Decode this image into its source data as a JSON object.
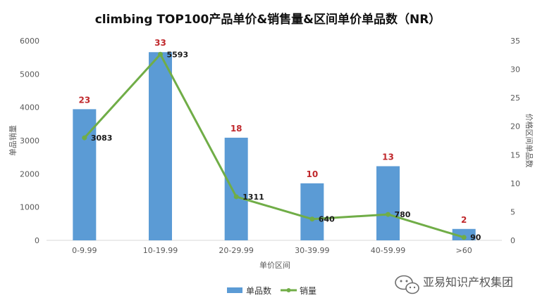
{
  "chart_data": {
    "type": "bar",
    "title": "climbing TOP100产品单价&销售量&区间单价单品数（NR）",
    "categories": [
      "0-9.99",
      "10-19.99",
      "20-29.99",
      "30-39.99",
      "40-59.99",
      ">60"
    ],
    "series": [
      {
        "name": "单品数",
        "type": "bar",
        "axis": "right",
        "values": [
          23,
          33,
          18,
          10,
          13,
          2
        ],
        "color": "#5b9bd5"
      },
      {
        "name": "销量",
        "type": "line",
        "axis": "left",
        "values": [
          3083,
          5593,
          1311,
          640,
          780,
          90
        ],
        "color": "#70ad47"
      }
    ],
    "xlabel": "单价区间",
    "ylabel": "单品销量",
    "y2label": "价格区间单品数",
    "ylim": [
      0,
      6000
    ],
    "y2lim": [
      0,
      35
    ],
    "yticks": [
      "0",
      "1000",
      "2000",
      "3000",
      "4000",
      "5000",
      "6000"
    ],
    "y2ticks": [
      "0",
      "5",
      "10",
      "15",
      "20",
      "25",
      "30",
      "35"
    ],
    "grid": false,
    "legend_position": "bottom"
  },
  "watermark": "亚易知识产权集团"
}
